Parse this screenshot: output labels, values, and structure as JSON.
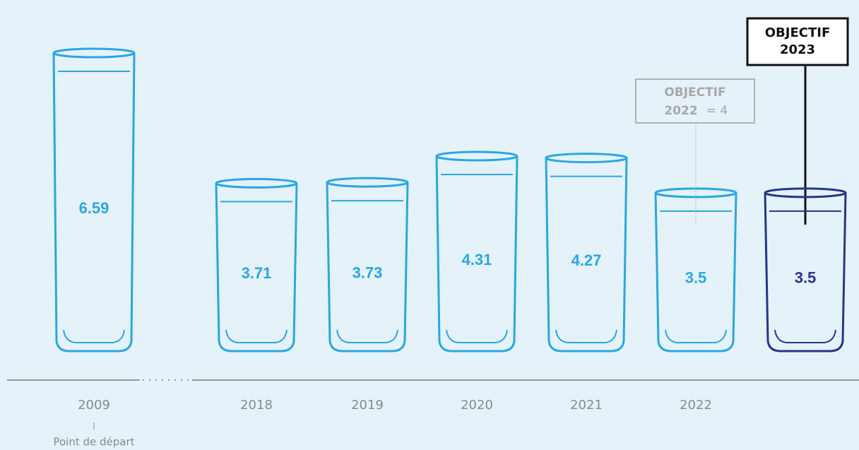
{
  "chart_data": {
    "type": "bar",
    "categories": [
      "2009",
      "2018",
      "2019",
      "2020",
      "2021",
      "2022",
      null
    ],
    "values": [
      6.59,
      3.71,
      3.73,
      4.31,
      4.27,
      3.5,
      3.5
    ],
    "colors": [
      "#2aa7e0",
      "#2aa7e0",
      "#2aa7e0",
      "#2aa7e0",
      "#2aa7e0",
      "#2aa7e0",
      "#26358c"
    ],
    "start_note": "Point de départ",
    "target_2022": {
      "word": "OBJECTIF",
      "year": "2022",
      "rest": "= 4"
    },
    "target_2023": {
      "word": "OBJECTIF",
      "year": "2023"
    }
  }
}
